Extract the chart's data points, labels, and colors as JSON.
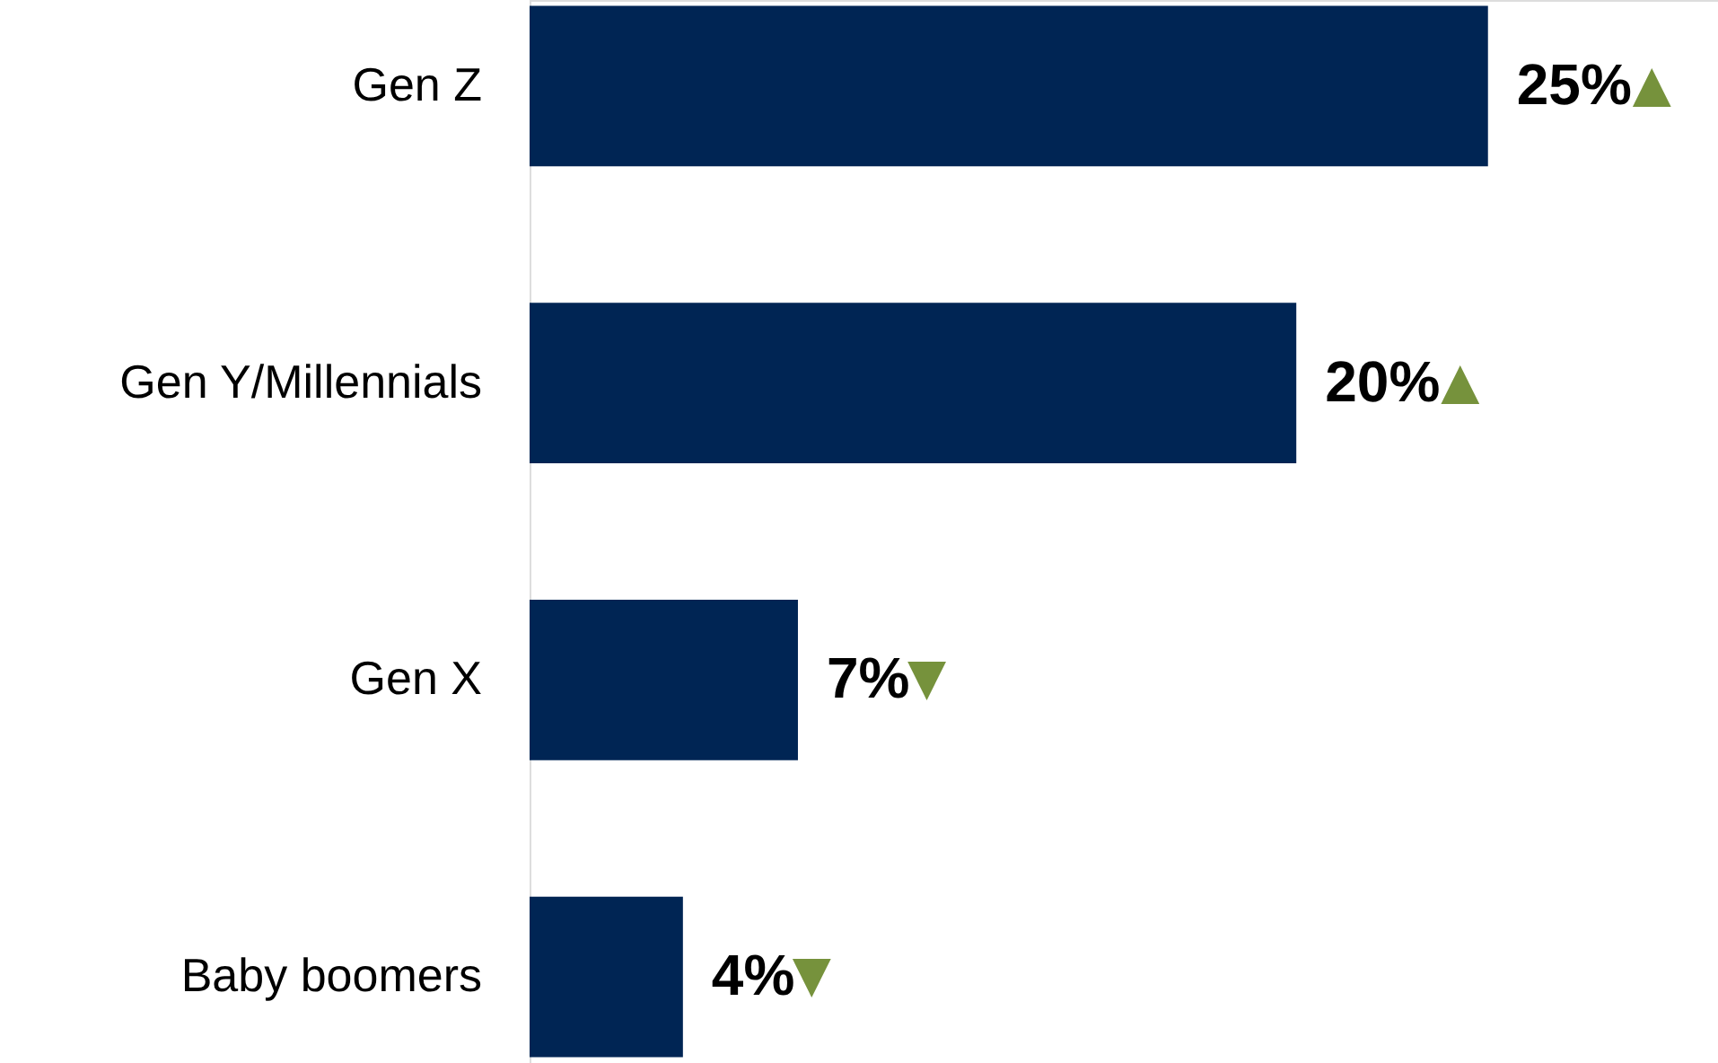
{
  "chart_data": {
    "type": "bar",
    "orientation": "horizontal",
    "categories": [
      "Gen Z",
      "Gen Y/Millennials",
      "Gen X",
      "Baby boomers"
    ],
    "values": [
      25,
      20,
      7,
      4
    ],
    "value_labels": [
      "25%",
      "20%",
      "7%",
      "4%"
    ],
    "color": "#002554",
    "xlim": [
      0,
      31
    ],
    "tick_labels": "y",
    "annotations": [
      {
        "text": "▲",
        "x": 25,
        "y": "Gen Z"
      },
      {
        "text": "▲",
        "x": 20,
        "y": "Gen Y/Millennials"
      },
      {
        "text": "▼",
        "x": 7,
        "y": "Gen X"
      },
      {
        "text": "▼",
        "x": 4,
        "y": "Baby boomers"
      }
    ]
  }
}
